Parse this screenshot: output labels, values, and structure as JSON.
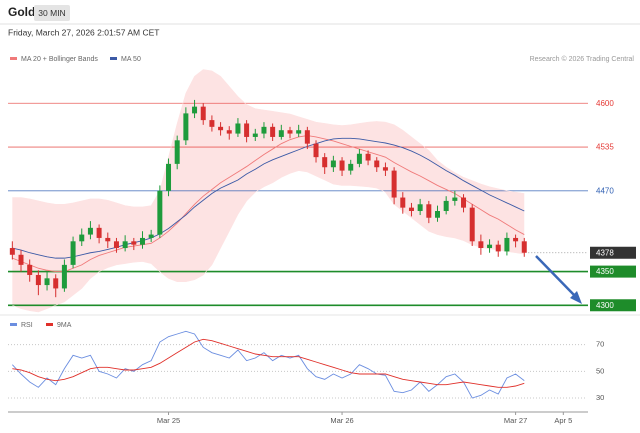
{
  "chart_data": {
    "type": "candlestick",
    "title": "Gold",
    "timeframe": "30 MIN",
    "subtitle": "Friday, March 27, 2026 2:01:57 AM CET",
    "source": "Research © 2026 Trading Central",
    "up_color": "#1e9b3c",
    "down_color": "#d62f2f",
    "open": [
      4385,
      4375,
      4360,
      4345,
      4330,
      4340,
      4325,
      4360,
      4395,
      4405,
      4415,
      4400,
      4395,
      4385,
      4395,
      4390,
      4400,
      4405,
      4470,
      4510,
      4545,
      4585,
      4595,
      4575,
      4565,
      4560,
      4555,
      4570,
      4550,
      4555,
      4565,
      4550,
      4560,
      4555,
      4560,
      4540,
      4520,
      4505,
      4515,
      4500,
      4510,
      4525,
      4515,
      4505,
      4500,
      4460,
      4445,
      4440,
      4450,
      4430,
      4440,
      4455,
      4460,
      4445,
      4395,
      4385,
      4390,
      4380,
      4400,
      4395
    ],
    "high": [
      4395,
      4382,
      4368,
      4352,
      4350,
      4346,
      4368,
      4402,
      4414,
      4425,
      4420,
      4408,
      4400,
      4404,
      4400,
      4410,
      4412,
      4478,
      4518,
      4552,
      4594,
      4605,
      4600,
      4582,
      4572,
      4566,
      4578,
      4575,
      4562,
      4572,
      4570,
      4568,
      4565,
      4568,
      4565,
      4545,
      4526,
      4522,
      4520,
      4516,
      4532,
      4530,
      4520,
      4512,
      4505,
      4468,
      4452,
      4458,
      4455,
      4448,
      4462,
      4470,
      4465,
      4450,
      4405,
      4398,
      4396,
      4408,
      4405,
      4400
    ],
    "low": [
      4368,
      4350,
      4335,
      4315,
      4322,
      4312,
      4320,
      4355,
      4388,
      4398,
      4392,
      4385,
      4378,
      4380,
      4382,
      4384,
      4394,
      4400,
      4462,
      4502,
      4538,
      4578,
      4568,
      4558,
      4552,
      4546,
      4550,
      4542,
      4544,
      4548,
      4544,
      4546,
      4548,
      4550,
      4532,
      4512,
      4495,
      4498,
      4492,
      4494,
      4505,
      4508,
      4498,
      4492,
      4450,
      4436,
      4432,
      4434,
      4422,
      4424,
      4435,
      4448,
      4438,
      4388,
      4375,
      4378,
      4372,
      4374,
      4386,
      4372
    ],
    "close": [
      4375,
      4360,
      4345,
      4330,
      4340,
      4325,
      4360,
      4395,
      4405,
      4415,
      4400,
      4395,
      4385,
      4395,
      4390,
      4400,
      4405,
      4470,
      4510,
      4545,
      4585,
      4595,
      4575,
      4565,
      4560,
      4555,
      4570,
      4550,
      4555,
      4565,
      4550,
      4560,
      4555,
      4560,
      4540,
      4520,
      4505,
      4515,
      4500,
      4510,
      4525,
      4515,
      4505,
      4500,
      4460,
      4445,
      4440,
      4450,
      4430,
      4440,
      4455,
      4460,
      4445,
      4395,
      4385,
      4390,
      4380,
      4400,
      4395,
      4378
    ],
    "overlays": [
      {
        "name": "MA 20 + Bollinger Bands",
        "color": "#f07a7a",
        "band_color": "#fde3e3",
        "values": [
          4370,
          4365,
          4360,
          4355,
          4352,
          4350,
          4350,
          4355,
          4360,
          4368,
          4374,
          4378,
          4382,
          4386,
          4388,
          4390,
          4392,
          4400,
          4410,
          4422,
          4436,
          4450,
          4462,
          4472,
          4482,
          4490,
          4498,
          4506,
          4515,
          4524,
          4532,
          4540,
          4546,
          4550,
          4552,
          4550,
          4547,
          4544,
          4540,
          4536,
          4532,
          4528,
          4524,
          4520,
          4512,
          4505,
          4498,
          4492,
          4485,
          4478,
          4472,
          4466,
          4458,
          4450,
          4442,
          4434,
          4428,
          4420,
          4412,
          4405
        ],
        "upper": [
          4460,
          4460,
          4458,
          4455,
          4452,
          4450,
          4450,
          4452,
          4455,
          4458,
          4458,
          4456,
          4452,
          4448,
          4446,
          4446,
          4448,
          4470,
          4520,
          4570,
          4615,
          4640,
          4650,
          4648,
          4640,
          4625,
          4610,
          4598,
          4592,
          4590,
          4588,
          4586,
          4584,
          4580,
          4576,
          4572,
          4570,
          4568,
          4567,
          4568,
          4570,
          4572,
          4573,
          4572,
          4568,
          4560,
          4550,
          4540,
          4530,
          4515,
          4505,
          4497,
          4490,
          4485,
          4480,
          4476,
          4473,
          4470,
          4468,
          4466
        ],
        "lower": [
          4300,
          4295,
          4292,
          4290,
          4295,
          4300,
          4305,
          4315,
          4325,
          4340,
          4350,
          4356,
          4360,
          4362,
          4364,
          4365,
          4362,
          4350,
          4340,
          4335,
          4335,
          4338,
          4345,
          4360,
          4385,
          4410,
          4435,
          4455,
          4468,
          4476,
          4482,
          4490,
          4496,
          4500,
          4498,
          4492,
          4486,
          4480,
          4478,
          4478,
          4477,
          4476,
          4474,
          4468,
          4450,
          4440,
          4430,
          4420,
          4410,
          4405,
          4402,
          4400,
          4396,
          4390,
          4386,
          4384,
          4382,
          4380,
          4378,
          4376
        ]
      },
      {
        "name": "MA 50",
        "color": "#3c5aa6",
        "values": [
          4385,
          4382,
          4378,
          4375,
          4372,
          4370,
          4370,
          4372,
          4375,
          4378,
          4380,
          4383,
          4386,
          4390,
          4393,
          4396,
          4400,
          4406,
          4414,
          4424,
          4434,
          4446,
          4456,
          4466,
          4474,
          4480,
          4486,
          4495,
          4502,
          4510,
          4516,
          4521,
          4526,
          4531,
          4536,
          4540,
          4544,
          4547,
          4548,
          4548,
          4547,
          4545,
          4543,
          4541,
          4538,
          4534,
          4529,
          4523,
          4516,
          4508,
          4500,
          4493,
          4485,
          4478,
          4471,
          4464,
          4458,
          4452,
          4446,
          4440
        ]
      }
    ],
    "levels": [
      {
        "value": 4600,
        "color": "#e53935",
        "style": "thin"
      },
      {
        "value": 4535,
        "color": "#e53935",
        "style": "thin"
      },
      {
        "value": 4470,
        "color": "#2f5fb3",
        "style": "thin"
      },
      {
        "value": 4378,
        "color": "#333333",
        "style": "current"
      },
      {
        "value": 4350,
        "color": "#1e8c2a",
        "style": "thick"
      },
      {
        "value": 4300,
        "color": "#1e8c2a",
        "style": "thick"
      }
    ],
    "ylim": [
      4290,
      4642
    ],
    "xlim": [
      -0.5,
      66
    ],
    "xticks": [
      {
        "value": 18,
        "label": "Mar 25"
      },
      {
        "value": 38,
        "label": "Mar 26"
      },
      {
        "value": 58,
        "label": "Mar 27"
      },
      {
        "value": 63.5,
        "label": "Apr 5"
      }
    ],
    "indicator": {
      "ylim": [
        21,
        81
      ],
      "yticks": [
        30,
        50,
        70
      ],
      "series": [
        {
          "name": "RSI",
          "color": "#6b8ee0",
          "values": [
            55,
            48,
            42,
            38,
            45,
            40,
            52,
            62,
            60,
            62,
            50,
            48,
            45,
            52,
            50,
            55,
            58,
            72,
            76,
            78,
            80,
            78,
            68,
            64,
            62,
            60,
            66,
            58,
            60,
            64,
            58,
            62,
            60,
            62,
            52,
            46,
            44,
            48,
            45,
            48,
            55,
            52,
            48,
            47,
            35,
            34,
            36,
            42,
            35,
            40,
            46,
            48,
            42,
            30,
            32,
            36,
            33,
            45,
            48,
            43
          ]
        },
        {
          "name": "9MA",
          "color": "#e0302a",
          "values": [
            52,
            51,
            49,
            46,
            44,
            43,
            44,
            46,
            49,
            52,
            53,
            53,
            52,
            51,
            51,
            52,
            53,
            56,
            60,
            64,
            68,
            72,
            74,
            73,
            71,
            69,
            67,
            65,
            63,
            62,
            61,
            61,
            61,
            61,
            59,
            57,
            55,
            53,
            51,
            49,
            48,
            48,
            48,
            48,
            46,
            44,
            43,
            42,
            41,
            40,
            40,
            41,
            42,
            41,
            40,
            39,
            38,
            38,
            39,
            41
          ]
        }
      ]
    }
  }
}
